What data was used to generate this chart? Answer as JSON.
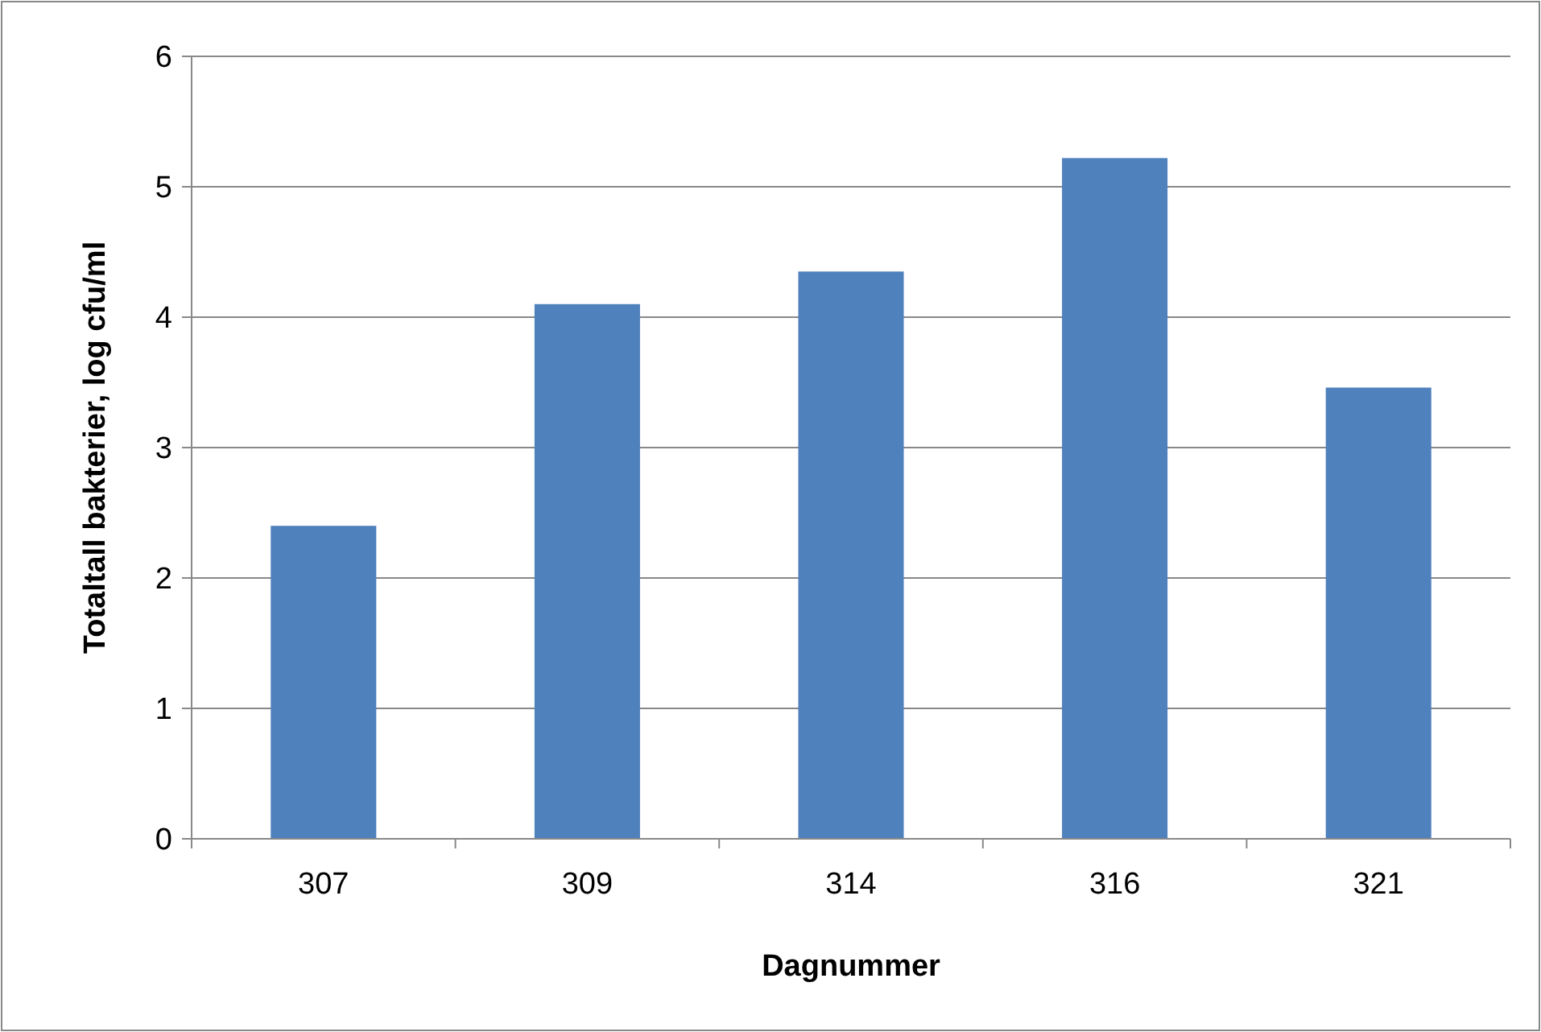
{
  "chart_data": {
    "type": "bar",
    "xlabel": "Dagnummer",
    "ylabel": "Totaltall bakterier, log cfu/ml",
    "categories": [
      "307",
      "309",
      "314",
      "316",
      "321"
    ],
    "values": [
      2.4,
      4.1,
      4.35,
      5.22,
      3.46
    ],
    "color": "#4f81bd",
    "ylim": [
      0,
      6
    ],
    "yticks": [
      0,
      1,
      2,
      3,
      4,
      5,
      6
    ],
    "grid": "y"
  }
}
